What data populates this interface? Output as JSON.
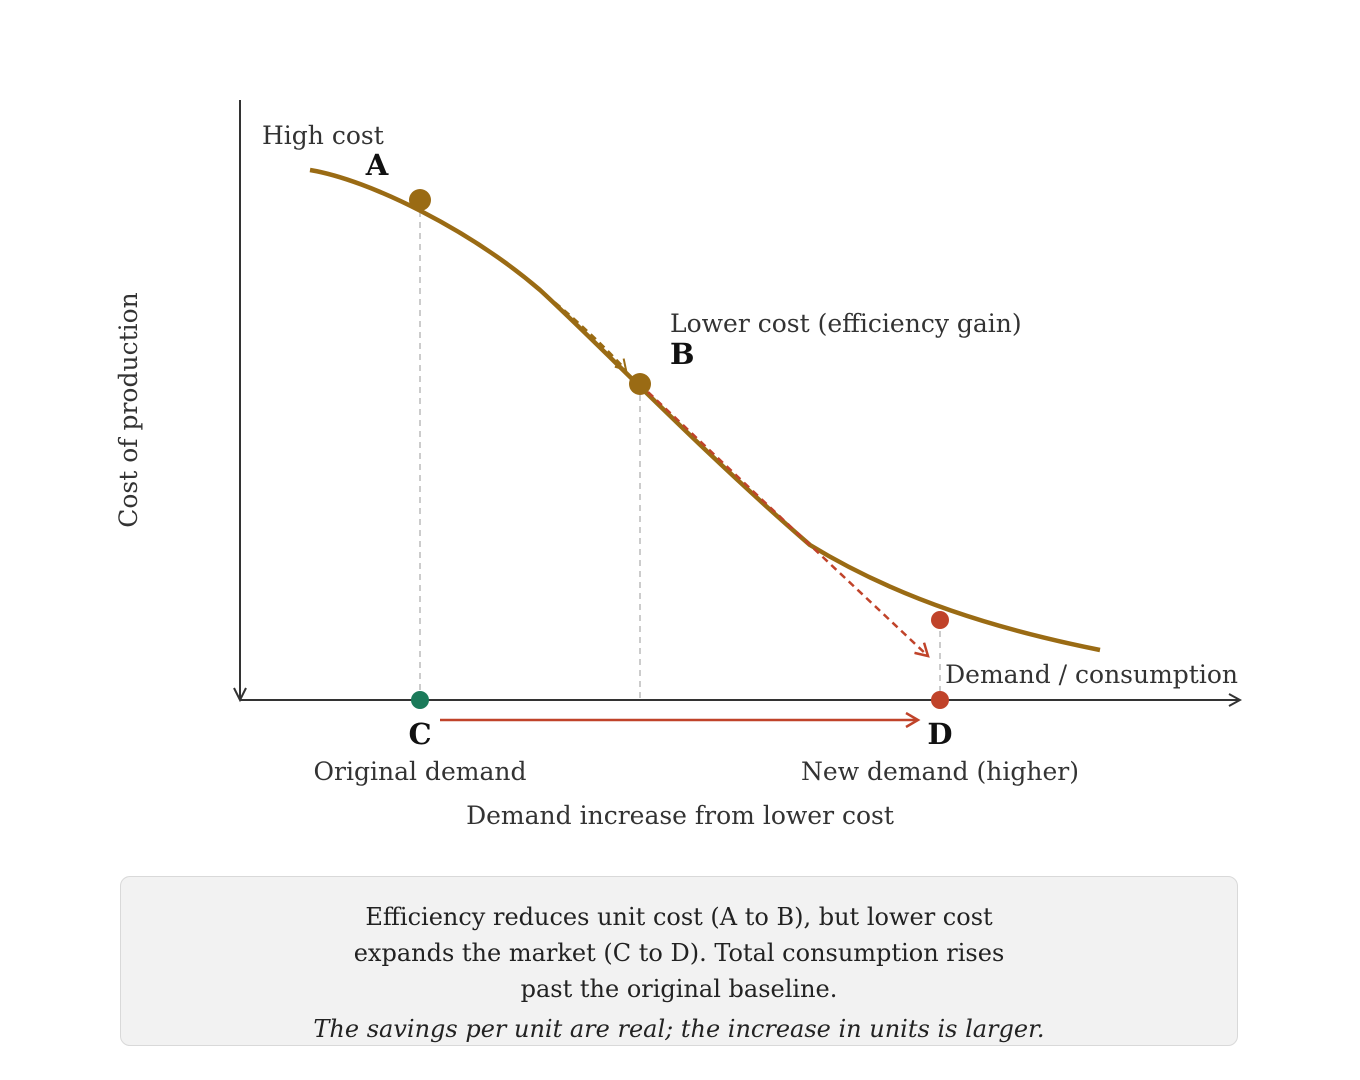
{
  "diagram": {
    "y_axis_label": "Cost of production",
    "x_axis_label": "Demand / consumption",
    "points": {
      "A": {
        "letter": "A",
        "label": "High cost"
      },
      "B": {
        "letter": "B",
        "label": "Lower cost (efficiency gain)"
      },
      "C": {
        "letter": "C",
        "label": "Original demand"
      },
      "D": {
        "letter": "D",
        "label": "New demand (higher)"
      }
    },
    "shift_label": "Demand increase from lower cost",
    "colors": {
      "curve": "#9a6b14",
      "point_a_b": "#9a6b14",
      "point_c": "#1b7a5a",
      "point_d": "#c0432a",
      "axis": "#333333",
      "guide": "#bbbbbb"
    }
  },
  "caption": {
    "lines": [
      "Efficiency reduces unit cost (A to B), but lower cost",
      "expands the market (C to D). Total consumption rises",
      "past the original baseline."
    ],
    "note": "The savings per unit are real; the increase in units is larger."
  }
}
